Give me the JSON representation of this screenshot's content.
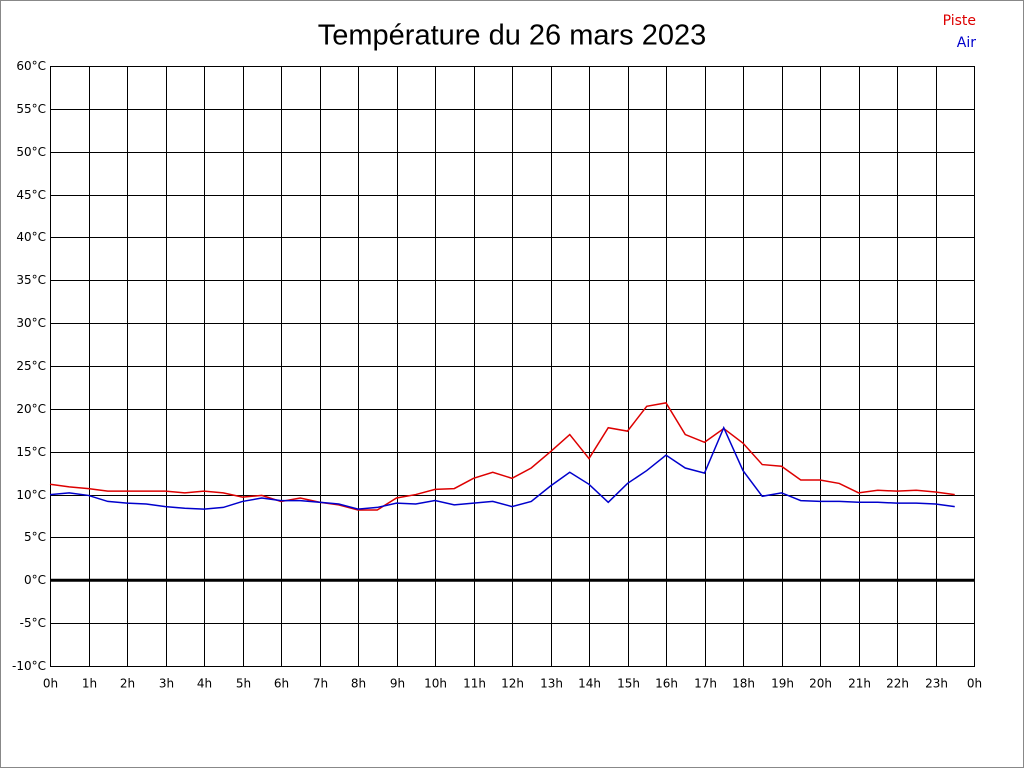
{
  "chart_data": {
    "type": "line",
    "title": "Température du 26 mars 2023",
    "x": [
      0,
      0.5,
      1,
      1.5,
      2,
      2.5,
      3,
      3.5,
      4,
      4.5,
      5,
      5.5,
      6,
      6.5,
      7,
      7.5,
      8,
      8.5,
      9,
      9.5,
      10,
      10.5,
      11,
      11.5,
      12,
      12.5,
      13,
      13.5,
      14,
      14.5,
      15,
      15.5,
      16,
      16.5,
      17,
      17.5,
      18,
      18.5,
      19,
      19.5,
      20,
      20.5,
      21,
      21.5,
      22,
      22.5,
      23,
      23.5
    ],
    "series": [
      {
        "name": "Piste",
        "color": "#dd0000",
        "values": [
          11.2,
          10.9,
          10.7,
          10.4,
          10.4,
          10.4,
          10.4,
          10.2,
          10.4,
          10.2,
          9.7,
          9.9,
          9.2,
          9.6,
          9.1,
          8.8,
          8.2,
          8.2,
          9.6,
          10.0,
          10.6,
          10.7,
          11.9,
          12.6,
          11.9,
          13.1,
          15.0,
          17.0,
          14.2,
          17.8,
          17.4,
          20.3,
          20.7,
          17.0,
          16.1,
          17.7,
          16.0,
          13.5,
          13.3,
          11.7,
          11.7,
          11.3,
          10.2,
          10.5,
          10.4,
          10.5,
          10.3,
          10.0
        ]
      },
      {
        "name": "Air",
        "color": "#0000cc",
        "values": [
          10.0,
          10.2,
          9.9,
          9.2,
          9.0,
          8.9,
          8.6,
          8.4,
          8.3,
          8.5,
          9.2,
          9.6,
          9.3,
          9.3,
          9.1,
          8.9,
          8.3,
          8.5,
          9.0,
          8.9,
          9.3,
          8.8,
          9.0,
          9.2,
          8.6,
          9.2,
          11.0,
          12.6,
          11.2,
          9.1,
          11.3,
          12.8,
          14.6,
          13.1,
          12.5,
          17.8,
          12.8,
          9.8,
          10.2,
          9.3,
          9.2,
          9.2,
          9.1,
          9.1,
          9.0,
          9.0,
          8.9,
          8.6
        ]
      }
    ],
    "xlim": [
      0,
      24
    ],
    "xticks": [
      {
        "value": 0,
        "label": "0h"
      },
      {
        "value": 1,
        "label": "1h"
      },
      {
        "value": 2,
        "label": "2h"
      },
      {
        "value": 3,
        "label": "3h"
      },
      {
        "value": 4,
        "label": "4h"
      },
      {
        "value": 5,
        "label": "5h"
      },
      {
        "value": 6,
        "label": "6h"
      },
      {
        "value": 7,
        "label": "7h"
      },
      {
        "value": 8,
        "label": "8h"
      },
      {
        "value": 9,
        "label": "9h"
      },
      {
        "value": 10,
        "label": "10h"
      },
      {
        "value": 11,
        "label": "11h"
      },
      {
        "value": 12,
        "label": "12h"
      },
      {
        "value": 13,
        "label": "13h"
      },
      {
        "value": 14,
        "label": "14h"
      },
      {
        "value": 15,
        "label": "15h"
      },
      {
        "value": 16,
        "label": "16h"
      },
      {
        "value": 17,
        "label": "17h"
      },
      {
        "value": 18,
        "label": "18h"
      },
      {
        "value": 19,
        "label": "19h"
      },
      {
        "value": 20,
        "label": "20h"
      },
      {
        "value": 21,
        "label": "21h"
      },
      {
        "value": 22,
        "label": "22h"
      },
      {
        "value": 23,
        "label": "23h"
      },
      {
        "value": 24,
        "label": "0h"
      }
    ],
    "ylim": [
      -10,
      60
    ],
    "yticks": [
      {
        "value": -10,
        "label": "-10°C"
      },
      {
        "value": -5,
        "label": "-5°C"
      },
      {
        "value": 0,
        "label": "0°C"
      },
      {
        "value": 5,
        "label": "5°C"
      },
      {
        "value": 10,
        "label": "10°C"
      },
      {
        "value": 15,
        "label": "15°C"
      },
      {
        "value": 20,
        "label": "20°C"
      },
      {
        "value": 25,
        "label": "25°C"
      },
      {
        "value": 30,
        "label": "30°C"
      },
      {
        "value": 35,
        "label": "35°C"
      },
      {
        "value": 40,
        "label": "40°C"
      },
      {
        "value": 45,
        "label": "45°C"
      },
      {
        "value": 50,
        "label": "50°C"
      },
      {
        "value": 55,
        "label": "55°C"
      },
      {
        "value": 60,
        "label": "60°C"
      }
    ],
    "grid": true,
    "legend": "top-right"
  }
}
